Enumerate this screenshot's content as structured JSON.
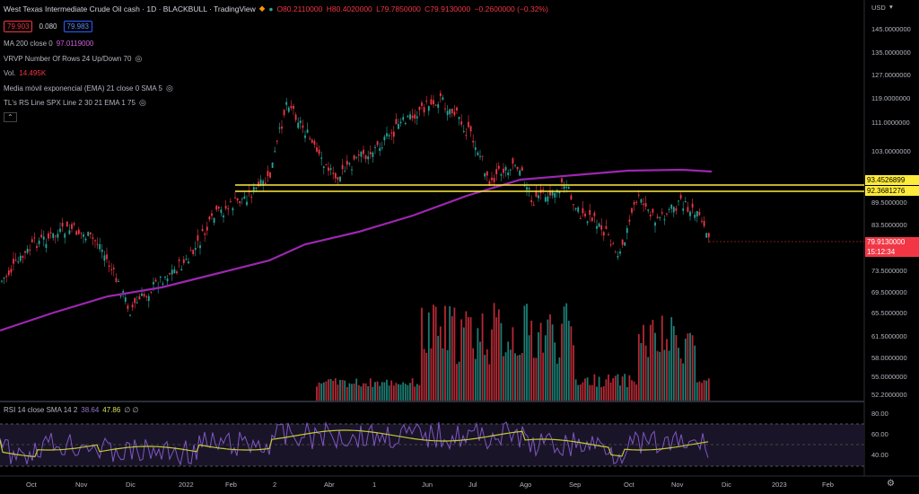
{
  "header": {
    "title": "West Texas Intermediate Crude Oil cash · 1D · BLACKBULL · TradingView",
    "ohlc": {
      "open": "O80.2110000",
      "high": "H80.4020000",
      "low": "L79.7850000",
      "close": "C79.9130000",
      "change": "−0.2600000 (−0.32%)"
    },
    "bid": "79.903",
    "spread": "0.080",
    "ask": "79.983"
  },
  "indicators": [
    {
      "label": "MA 200 close 0",
      "value": "97.0119000",
      "color": "#9c27b0"
    },
    {
      "label": "VRVP Number Of Rows 24 Up/Down 70",
      "value": ""
    },
    {
      "label": "Vol.",
      "value": "14.495K",
      "color": "#f23645"
    },
    {
      "label": "Media móvil exponencial (EMA) 21 close 0 SMA 5",
      "value": ""
    },
    {
      "label": "TL's RS Line SPX Line 2 30 21 EMA 1 75",
      "value": ""
    }
  ],
  "rsi": {
    "label": "RSI 14 close SMA 14 2",
    "value1": "38.64",
    "value2": "47.86",
    "value3": "∅ ∅"
  },
  "price_axis": {
    "currency": "USD",
    "ticks": [
      "145.0000000",
      "135.0000000",
      "127.0000000",
      "119.0000000",
      "111.0000000",
      "103.0000000",
      "89.5000000",
      "83.5000000",
      "73.5000000",
      "69.5000000",
      "65.5000000",
      "61.5000000",
      "58.0000000",
      "55.0000000",
      "52.2000000"
    ],
    "tag_upper": "93.4526899",
    "tag_lower": "92.3681276",
    "tag_last": "79.9130000",
    "tag_countdown": "15:12:34"
  },
  "rsi_axis": {
    "ticks": [
      "80.00",
      "60.00",
      "40.00"
    ]
  },
  "time_axis": {
    "ticks": [
      "Oct",
      "Nov",
      "Dic",
      "2022",
      "Feb",
      "2",
      "Abr",
      "1",
      "Jun",
      "Jul",
      "Ago",
      "Sep",
      "Oct",
      "Nov",
      "Dic",
      "2023",
      "Feb"
    ]
  },
  "colors": {
    "up": "#26a69a",
    "down": "#f23645",
    "ma": "#9c27b0",
    "support": "#ffeb3b",
    "rsi": "#7e57c2",
    "rsi_ma": "#c0ca33"
  },
  "chart_data": {
    "type": "candlestick",
    "symbol": "West Texas Intermediate Crude Oil cash",
    "interval": "1D",
    "close_path_approx": [
      {
        "x": "Sep 2021",
        "y": 70
      },
      {
        "x": "Oct 2021",
        "y": 79
      },
      {
        "x": "Nov 2021",
        "y": 80
      },
      {
        "x": "Dic 2021",
        "y": 68
      },
      {
        "x": "2022",
        "y": 77
      },
      {
        "x": "Feb 2022",
        "y": 91
      },
      {
        "x": "Mar 2022",
        "y": 105
      },
      {
        "x": "Abr 2022",
        "y": 100
      },
      {
        "x": "May 2022",
        "y": 109
      },
      {
        "x": "Jun 2022",
        "y": 118
      },
      {
        "x": "Jul 2022",
        "y": 98
      },
      {
        "x": "Ago 2022",
        "y": 90
      },
      {
        "x": "Sep 2022",
        "y": 83
      },
      {
        "x": "Oct 2022",
        "y": 86
      },
      {
        "x": "Nov 2022",
        "y": 88
      },
      {
        "x": "Nov 2022 end",
        "y": 79.913
      }
    ],
    "horizontal_levels": [
      93.4526899,
      92.3681276
    ],
    "last_price": 79.913,
    "ma200_last": 97.0119
  }
}
